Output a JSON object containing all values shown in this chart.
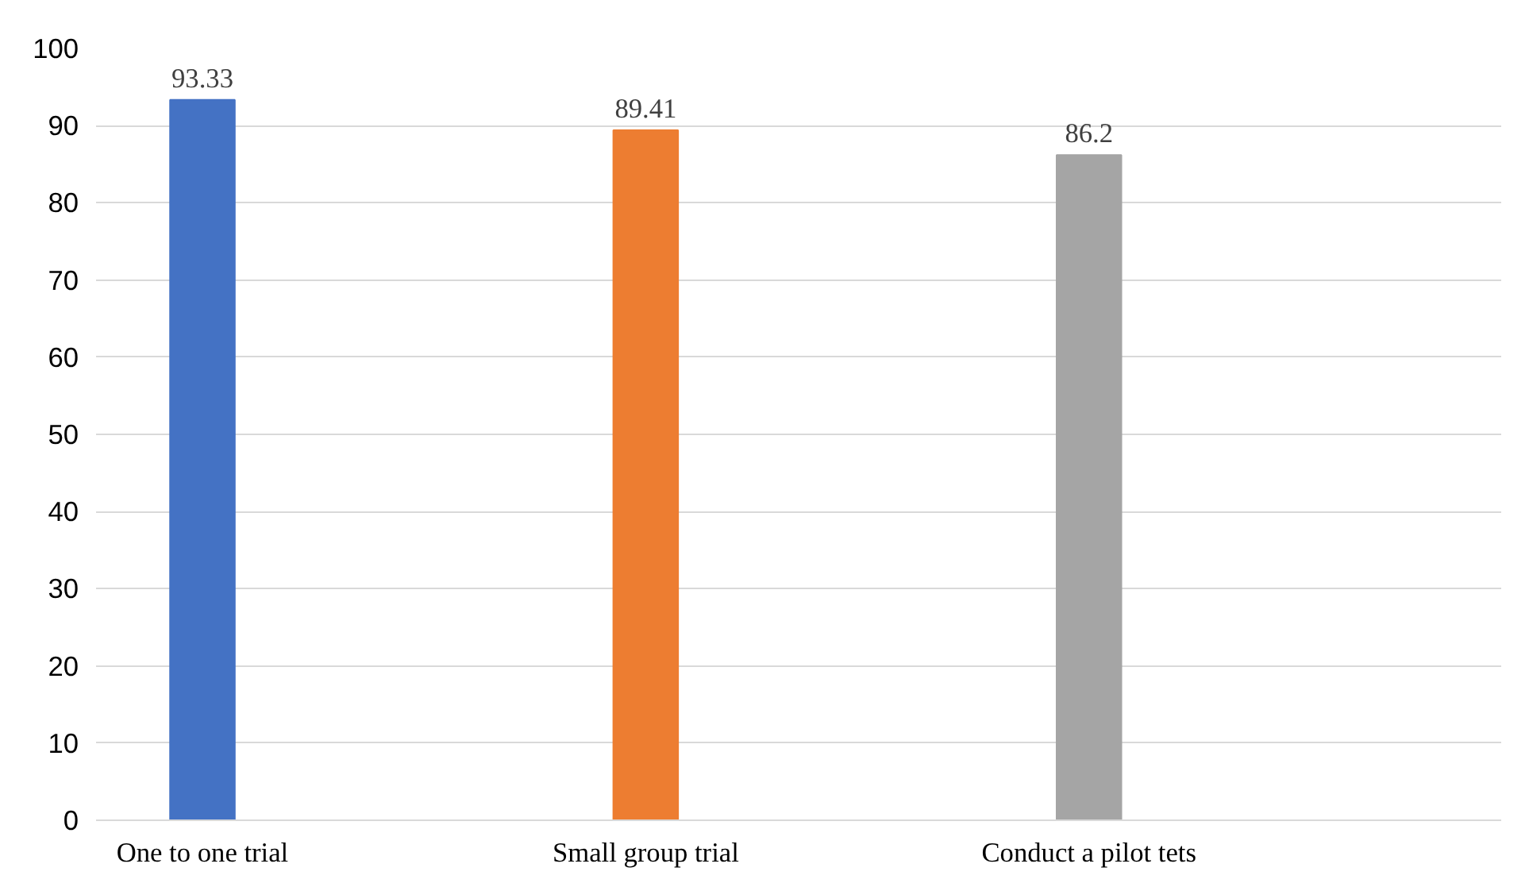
{
  "chart_data": {
    "type": "bar",
    "categories": [
      "One to one trial",
      "Small group trial",
      "Conduct a pilot tets"
    ],
    "values": [
      93.33,
      89.41,
      86.2
    ],
    "colors": [
      "#4472c4",
      "#ed7d31",
      "#a5a5a5"
    ],
    "ylim": [
      0,
      100
    ],
    "yticks": [
      0,
      10,
      20,
      30,
      40,
      50,
      60,
      70,
      80,
      90,
      100
    ],
    "grid": "y",
    "data_labels": true
  }
}
